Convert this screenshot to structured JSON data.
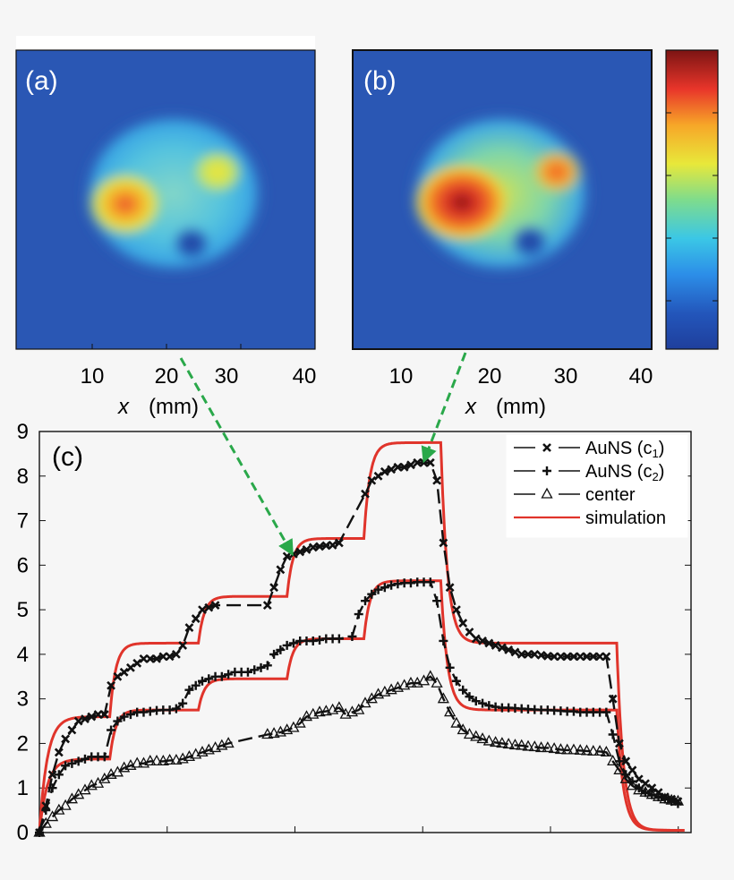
{
  "panels": {
    "a": {
      "label": "(a)",
      "xticks": [
        "10",
        "20",
        "30",
        "40"
      ],
      "xlabel_var": "x",
      "xlabel_unit": "(mm)"
    },
    "b": {
      "label": "(b)",
      "xticks": [
        "10",
        "20",
        "30",
        "40"
      ],
      "xlabel_var": "x",
      "xlabel_unit": "(mm)"
    }
  },
  "colors": {
    "simulation": "#e0342b",
    "markers": "#111111",
    "arrow": "#2aa84a",
    "map_background": "#2a57b4"
  },
  "chart_data": {
    "type": "line",
    "label": "(c)",
    "ylim": [
      0,
      9
    ],
    "yticks": [
      "0",
      "1",
      "2",
      "3",
      "4",
      "5",
      "6",
      "7",
      "8",
      "9"
    ],
    "xlim": [
      0,
      100
    ],
    "legend": {
      "placement": "top-right",
      "entries": [
        {
          "marker": "x",
          "name": "AuNS (c",
          "sub": "1",
          "close": ")"
        },
        {
          "marker": "+",
          "name": "AuNS (c",
          "sub": "2",
          "close": ")"
        },
        {
          "marker": "triangle",
          "name": "center",
          "sub": "",
          "close": ""
        },
        {
          "marker": "line",
          "name": "simulation",
          "sub": "",
          "close": ""
        }
      ]
    },
    "series": [
      {
        "name": "AuNS (c1)",
        "marker": "x",
        "points": [
          [
            0,
            0
          ],
          [
            1,
            0.6
          ],
          [
            2,
            1.3
          ],
          [
            3,
            1.8
          ],
          [
            4,
            2.1
          ],
          [
            5,
            2.3
          ],
          [
            6,
            2.5
          ],
          [
            7,
            2.55
          ],
          [
            8,
            2.6
          ],
          [
            9,
            2.65
          ],
          [
            10,
            2.65
          ],
          [
            11,
            3.3
          ],
          [
            12,
            3.5
          ],
          [
            13,
            3.6
          ],
          [
            14,
            3.7
          ],
          [
            15,
            3.8
          ],
          [
            16,
            3.9
          ],
          [
            17,
            3.9
          ],
          [
            18,
            3.9
          ],
          [
            19,
            3.95
          ],
          [
            20,
            3.95
          ],
          [
            21,
            4.0
          ],
          [
            22,
            4.2
          ],
          [
            23,
            4.6
          ],
          [
            24,
            4.8
          ],
          [
            25,
            5.0
          ],
          [
            26,
            5.05
          ],
          [
            27,
            5.1
          ],
          [
            35,
            5.1
          ],
          [
            36,
            5.5
          ],
          [
            37,
            5.9
          ],
          [
            38,
            6.2
          ],
          [
            39,
            6.25
          ],
          [
            40,
            6.3
          ],
          [
            41,
            6.35
          ],
          [
            42,
            6.4
          ],
          [
            43,
            6.42
          ],
          [
            44,
            6.44
          ],
          [
            45,
            6.45
          ],
          [
            46,
            6.5
          ],
          [
            50,
            7.6
          ],
          [
            51,
            7.9
          ],
          [
            52,
            8.0
          ],
          [
            53,
            8.1
          ],
          [
            54,
            8.15
          ],
          [
            55,
            8.2
          ],
          [
            56,
            8.2
          ],
          [
            57,
            8.25
          ],
          [
            58,
            8.3
          ],
          [
            59,
            8.3
          ],
          [
            60,
            8.3
          ],
          [
            61,
            7.9
          ],
          [
            62,
            6.5
          ],
          [
            63,
            5.5
          ],
          [
            64,
            5.0
          ],
          [
            65,
            4.7
          ],
          [
            66,
            4.5
          ],
          [
            67,
            4.35
          ],
          [
            68,
            4.3
          ],
          [
            69,
            4.25
          ],
          [
            70,
            4.2
          ],
          [
            71,
            4.15
          ],
          [
            72,
            4.1
          ],
          [
            73,
            4.05
          ],
          [
            74,
            4.0
          ],
          [
            75,
            4.0
          ],
          [
            76,
            4.0
          ],
          [
            77,
            3.98
          ],
          [
            78,
            3.96
          ],
          [
            79,
            3.95
          ],
          [
            80,
            3.95
          ],
          [
            81,
            3.95
          ],
          [
            82,
            3.95
          ],
          [
            83,
            3.95
          ],
          [
            84,
            3.95
          ],
          [
            85,
            3.95
          ],
          [
            86,
            3.95
          ],
          [
            87,
            3.95
          ],
          [
            88,
            3.0
          ],
          [
            89,
            2.0
          ],
          [
            90,
            1.6
          ],
          [
            91,
            1.4
          ],
          [
            92,
            1.2
          ],
          [
            93,
            1.1
          ],
          [
            94,
            1.0
          ],
          [
            95,
            0.9
          ],
          [
            96,
            0.8
          ],
          [
            97,
            0.75
          ],
          [
            98,
            0.7
          ]
        ]
      },
      {
        "name": "AuNS (c2)",
        "marker": "+",
        "points": [
          [
            0,
            0
          ],
          [
            1,
            0.5
          ],
          [
            2,
            1.0
          ],
          [
            3,
            1.3
          ],
          [
            4,
            1.5
          ],
          [
            5,
            1.55
          ],
          [
            6,
            1.6
          ],
          [
            7,
            1.65
          ],
          [
            8,
            1.7
          ],
          [
            9,
            1.7
          ],
          [
            10,
            1.7
          ],
          [
            11,
            2.3
          ],
          [
            12,
            2.5
          ],
          [
            13,
            2.6
          ],
          [
            14,
            2.65
          ],
          [
            15,
            2.7
          ],
          [
            16,
            2.7
          ],
          [
            17,
            2.72
          ],
          [
            18,
            2.74
          ],
          [
            19,
            2.75
          ],
          [
            20,
            2.75
          ],
          [
            21,
            2.78
          ],
          [
            22,
            2.9
          ],
          [
            23,
            3.2
          ],
          [
            24,
            3.3
          ],
          [
            25,
            3.4
          ],
          [
            26,
            3.45
          ],
          [
            27,
            3.5
          ],
          [
            28,
            3.5
          ],
          [
            29,
            3.55
          ],
          [
            30,
            3.6
          ],
          [
            31,
            3.6
          ],
          [
            32,
            3.6
          ],
          [
            33,
            3.65
          ],
          [
            34,
            3.7
          ],
          [
            35,
            3.75
          ],
          [
            36,
            4.0
          ],
          [
            37,
            4.1
          ],
          [
            38,
            4.2
          ],
          [
            39,
            4.25
          ],
          [
            40,
            4.3
          ],
          [
            41,
            4.3
          ],
          [
            42,
            4.3
          ],
          [
            43,
            4.32
          ],
          [
            44,
            4.35
          ],
          [
            45,
            4.35
          ],
          [
            46,
            4.35
          ],
          [
            48,
            4.4
          ],
          [
            49,
            4.9
          ],
          [
            50,
            5.2
          ],
          [
            51,
            5.35
          ],
          [
            52,
            5.45
          ],
          [
            53,
            5.5
          ],
          [
            54,
            5.55
          ],
          [
            55,
            5.58
          ],
          [
            56,
            5.6
          ],
          [
            57,
            5.6
          ],
          [
            58,
            5.62
          ],
          [
            59,
            5.62
          ],
          [
            60,
            5.62
          ],
          [
            61,
            5.2
          ],
          [
            62,
            4.3
          ],
          [
            63,
            3.7
          ],
          [
            64,
            3.4
          ],
          [
            65,
            3.2
          ],
          [
            66,
            3.05
          ],
          [
            67,
            2.95
          ],
          [
            68,
            2.9
          ],
          [
            69,
            2.85
          ],
          [
            70,
            2.82
          ],
          [
            71,
            2.8
          ],
          [
            72,
            2.8
          ],
          [
            73,
            2.79
          ],
          [
            74,
            2.78
          ],
          [
            75,
            2.77
          ],
          [
            76,
            2.76
          ],
          [
            77,
            2.75
          ],
          [
            78,
            2.75
          ],
          [
            79,
            2.74
          ],
          [
            80,
            2.73
          ],
          [
            81,
            2.72
          ],
          [
            82,
            2.72
          ],
          [
            83,
            2.7
          ],
          [
            84,
            2.7
          ],
          [
            85,
            2.7
          ],
          [
            86,
            2.7
          ],
          [
            87,
            2.7
          ],
          [
            88,
            2.2
          ],
          [
            89,
            1.6
          ],
          [
            90,
            1.3
          ],
          [
            91,
            1.15
          ],
          [
            92,
            1.0
          ],
          [
            93,
            0.9
          ],
          [
            94,
            0.85
          ],
          [
            95,
            0.8
          ],
          [
            96,
            0.75
          ],
          [
            97,
            0.7
          ],
          [
            98,
            0.65
          ]
        ]
      },
      {
        "name": "center",
        "marker": "triangle",
        "points": [
          [
            0,
            0
          ],
          [
            1,
            0.2
          ],
          [
            2,
            0.35
          ],
          [
            3,
            0.5
          ],
          [
            4,
            0.6
          ],
          [
            5,
            0.75
          ],
          [
            6,
            0.85
          ],
          [
            7,
            0.95
          ],
          [
            8,
            1.05
          ],
          [
            9,
            1.1
          ],
          [
            10,
            1.2
          ],
          [
            11,
            1.3
          ],
          [
            12,
            1.35
          ],
          [
            13,
            1.45
          ],
          [
            14,
            1.5
          ],
          [
            15,
            1.55
          ],
          [
            16,
            1.55
          ],
          [
            17,
            1.6
          ],
          [
            18,
            1.6
          ],
          [
            19,
            1.6
          ],
          [
            20,
            1.62
          ],
          [
            21,
            1.62
          ],
          [
            22,
            1.65
          ],
          [
            23,
            1.7
          ],
          [
            24,
            1.75
          ],
          [
            25,
            1.8
          ],
          [
            26,
            1.85
          ],
          [
            27,
            1.9
          ],
          [
            28,
            1.95
          ],
          [
            29,
            2.0
          ],
          [
            35,
            2.2
          ],
          [
            36,
            2.22
          ],
          [
            37,
            2.25
          ],
          [
            38,
            2.3
          ],
          [
            39,
            2.35
          ],
          [
            40,
            2.45
          ],
          [
            41,
            2.6
          ],
          [
            42,
            2.65
          ],
          [
            43,
            2.7
          ],
          [
            44,
            2.72
          ],
          [
            45,
            2.75
          ],
          [
            46,
            2.8
          ],
          [
            47,
            2.65
          ],
          [
            48,
            2.7
          ],
          [
            49,
            2.75
          ],
          [
            50,
            2.9
          ],
          [
            51,
            3.0
          ],
          [
            52,
            3.1
          ],
          [
            53,
            3.15
          ],
          [
            54,
            3.2
          ],
          [
            55,
            3.25
          ],
          [
            56,
            3.3
          ],
          [
            57,
            3.35
          ],
          [
            58,
            3.35
          ],
          [
            59,
            3.4
          ],
          [
            60,
            3.5
          ],
          [
            61,
            3.35
          ],
          [
            62,
            3.0
          ],
          [
            63,
            2.7
          ],
          [
            64,
            2.45
          ],
          [
            65,
            2.3
          ],
          [
            66,
            2.2
          ],
          [
            67,
            2.15
          ],
          [
            68,
            2.1
          ],
          [
            69,
            2.05
          ],
          [
            70,
            2.02
          ],
          [
            71,
            2.0
          ],
          [
            72,
            1.98
          ],
          [
            73,
            1.96
          ],
          [
            74,
            1.95
          ],
          [
            75,
            1.93
          ],
          [
            76,
            1.92
          ],
          [
            77,
            1.9
          ],
          [
            78,
            1.9
          ],
          [
            79,
            1.88
          ],
          [
            80,
            1.86
          ],
          [
            81,
            1.85
          ],
          [
            82,
            1.85
          ],
          [
            83,
            1.84
          ],
          [
            84,
            1.83
          ],
          [
            85,
            1.82
          ],
          [
            86,
            1.82
          ],
          [
            87,
            1.8
          ],
          [
            88,
            1.6
          ],
          [
            89,
            1.4
          ],
          [
            90,
            1.2
          ],
          [
            91,
            1.05
          ],
          [
            92,
            0.95
          ],
          [
            93,
            0.9
          ],
          [
            94,
            0.85
          ],
          [
            95,
            0.8
          ],
          [
            96,
            0.75
          ],
          [
            97,
            0.72
          ],
          [
            98,
            0.7
          ]
        ]
      },
      {
        "name": "simulation",
        "marker": "line",
        "steps": [
          {
            "start": 0,
            "from": 0,
            "to": 2.6,
            "tau": 1.2
          },
          {
            "start": 10.8,
            "from": 2.6,
            "to": 4.25,
            "tau": 0.9
          },
          {
            "start": 24.4,
            "from": 4.25,
            "to": 5.3,
            "tau": 0.9
          },
          {
            "start": 38.0,
            "from": 5.3,
            "to": 6.6,
            "tau": 0.9
          },
          {
            "start": 49.8,
            "from": 6.6,
            "to": 8.75,
            "tau": 0.9
          },
          {
            "start": 61.6,
            "from": 8.75,
            "to": 4.25,
            "tau": 1.0
          },
          {
            "start": 88.6,
            "from": 4.25,
            "to": 0.05,
            "tau": 1.0
          }
        ],
        "steps_b": [
          {
            "start": 0,
            "from": 0,
            "to": 1.65,
            "tau": 1.2
          },
          {
            "start": 10.8,
            "from": 1.65,
            "to": 2.75,
            "tau": 0.9
          },
          {
            "start": 24.4,
            "from": 2.75,
            "to": 3.45,
            "tau": 0.9
          },
          {
            "start": 38.0,
            "from": 3.45,
            "to": 4.35,
            "tau": 0.9
          },
          {
            "start": 49.8,
            "from": 4.35,
            "to": 5.65,
            "tau": 0.9
          },
          {
            "start": 61.6,
            "from": 5.65,
            "to": 2.75,
            "tau": 1.0
          },
          {
            "start": 88.6,
            "from": 2.75,
            "to": 0.05,
            "tau": 1.0
          }
        ]
      }
    ]
  }
}
